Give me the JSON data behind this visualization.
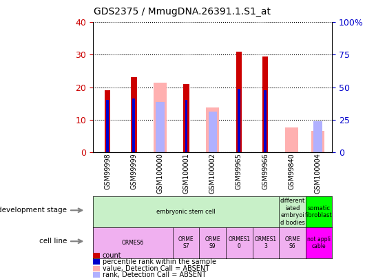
{
  "title": "GDS2375 / MmugDNA.26391.1.S1_at",
  "samples": [
    "GSM99998",
    "GSM99999",
    "GSM100000",
    "GSM100001",
    "GSM100002",
    "GSM99965",
    "GSM99966",
    "GSM99840",
    "GSM100004"
  ],
  "count": [
    19,
    23,
    null,
    21,
    null,
    31,
    29.5,
    null,
    null
  ],
  "percentile_rank": [
    16,
    16.5,
    null,
    16,
    null,
    19.5,
    19,
    null,
    null
  ],
  "absent_value": [
    null,
    null,
    21.5,
    null,
    13.8,
    null,
    null,
    7.5,
    6.5
  ],
  "absent_rank": [
    null,
    null,
    15.5,
    null,
    12.5,
    null,
    null,
    null,
    9.5
  ],
  "ylim_left": [
    0,
    40
  ],
  "ylim_right": [
    0,
    100
  ],
  "yticks_left": [
    0,
    10,
    20,
    30,
    40
  ],
  "yticks_right": [
    0,
    25,
    50,
    75,
    100
  ],
  "ytick_labels_right": [
    "0",
    "25",
    "50",
    "75",
    "100%"
  ],
  "bar_width": 0.5,
  "color_count": "#cc0000",
  "color_rank": "#0000cc",
  "color_absent_value": "#ffb0b0",
  "color_absent_rank": "#b0b0ff",
  "tick_color_left": "#cc0000",
  "tick_color_right": "#0000cc",
  "dev_groups": [
    {
      "label": "embryonic stem cell",
      "start": 0,
      "end": 7,
      "color": "#c8f0c8"
    },
    {
      "label": "different\niated\nembryoi\nd bodies",
      "start": 7,
      "end": 8,
      "color": "#c8f0c8"
    },
    {
      "label": "somatic\nfibroblast",
      "start": 8,
      "end": 9,
      "color": "#00ff00"
    }
  ],
  "cell_groups": [
    {
      "label": "ORMES6",
      "start": 0,
      "end": 3,
      "color": "#f0b0f0"
    },
    {
      "label": "ORME\nS7",
      "start": 3,
      "end": 4,
      "color": "#f0b0f0"
    },
    {
      "label": "ORME\nS9",
      "start": 4,
      "end": 5,
      "color": "#f0b0f0"
    },
    {
      "label": "ORMES1\n0",
      "start": 5,
      "end": 6,
      "color": "#f0b0f0"
    },
    {
      "label": "ORMES1\n3",
      "start": 6,
      "end": 7,
      "color": "#f0b0f0"
    },
    {
      "label": "ORME\nS6",
      "start": 7,
      "end": 8,
      "color": "#f0b0f0"
    },
    {
      "label": "not appli\ncable",
      "start": 8,
      "end": 9,
      "color": "#ff00ff"
    }
  ],
  "legend_items": [
    {
      "color": "#cc0000",
      "label": "count"
    },
    {
      "color": "#0000cc",
      "label": "percentile rank within the sample"
    },
    {
      "color": "#ffb0b0",
      "label": "value, Detection Call = ABSENT"
    },
    {
      "color": "#b0b0ff",
      "label": "rank, Detection Call = ABSENT"
    }
  ]
}
